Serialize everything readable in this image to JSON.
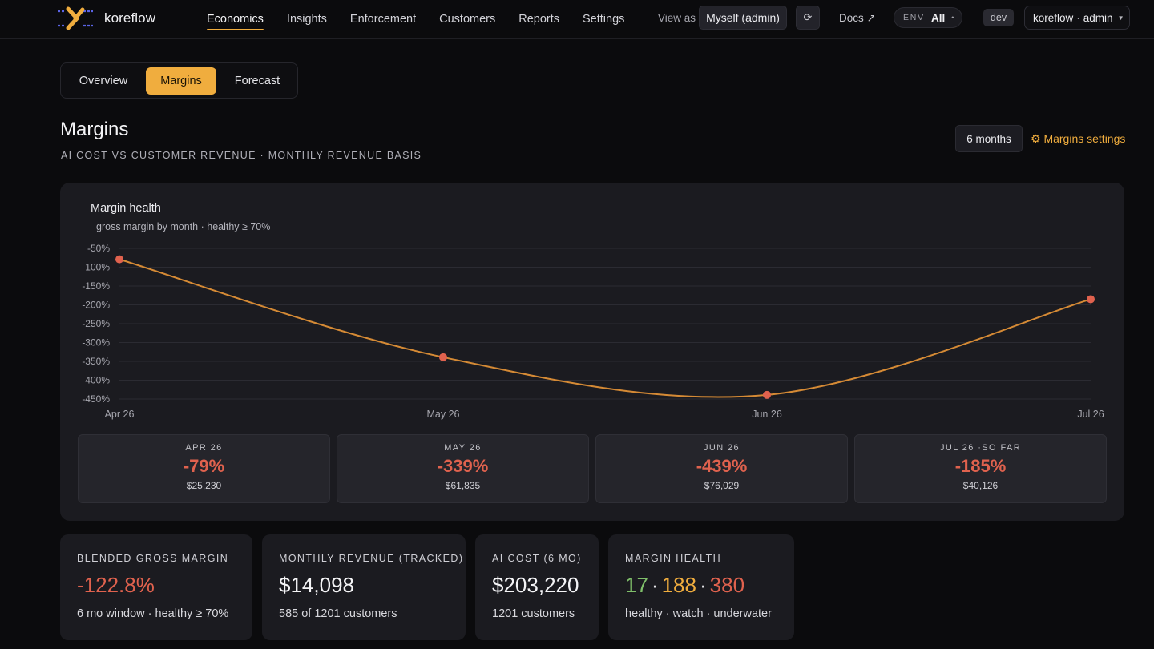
{
  "app": {
    "name": "koreflow"
  },
  "nav": {
    "links": [
      "Economics",
      "Insights",
      "Enforcement",
      "Customers",
      "Reports",
      "Settings"
    ],
    "active": "Economics",
    "view_as_label": "View as",
    "view_as_value": "Myself (admin)",
    "docs_label": "Docs ↗",
    "env_key": "ENV",
    "env_value": "All",
    "dev_badge": "dev",
    "account_org": "koreflow",
    "account_role": "admin"
  },
  "tabs": [
    {
      "label": "Overview",
      "active": false
    },
    {
      "label": "Margins",
      "active": true
    },
    {
      "label": "Forecast",
      "active": false
    }
  ],
  "page": {
    "title": "Margins",
    "subtitle": "AI COST VS CUSTOMER REVENUE · MONTHLY REVENUE BASIS",
    "range": "6 months",
    "settings_link": "⚙ Margins settings"
  },
  "chart_data": {
    "type": "line",
    "title": "Margin health",
    "subtitle": "gross margin by month · healthy ≥ 70%",
    "categories": [
      "Apr 26",
      "May 26",
      "Jun 26",
      "Jul 26"
    ],
    "series": [
      {
        "values": [
          -79,
          -339,
          -439,
          -185
        ]
      }
    ],
    "yticks": [
      -50,
      -100,
      -150,
      -200,
      -250,
      -300,
      -350,
      -400,
      -450
    ],
    "ylim": [
      -450,
      -50
    ],
    "ytick_format": "%",
    "grid": true,
    "line_color": "#d58a35",
    "point_color": "#e0624e"
  },
  "months": [
    {
      "label": "APR 26",
      "margin": "-79%",
      "revenue": "$25,230"
    },
    {
      "label": "MAY 26",
      "margin": "-339%",
      "revenue": "$61,835"
    },
    {
      "label": "JUN 26",
      "margin": "-439%",
      "revenue": "$76,029"
    },
    {
      "label": "JUL 26 ·SO FAR",
      "margin": "-185%",
      "revenue": "$40,126"
    }
  ],
  "stats": {
    "blended": {
      "label": "BLENDED GROSS MARGIN",
      "value": "-122.8%",
      "foot": "6 mo window · healthy ≥ 70%"
    },
    "revenue": {
      "label": "MONTHLY REVENUE (TRACKED)",
      "value": "$14,098",
      "foot": "585 of 1201 customers"
    },
    "ai_cost": {
      "label": "AI COST (6 MO)",
      "value": "$203,220",
      "foot": "1201 customers"
    },
    "health": {
      "label": "MARGIN HEALTH",
      "healthy": "17",
      "watch": "188",
      "underwater": "380",
      "foot": "healthy · watch · underwater"
    }
  },
  "colors": {
    "accent": "#f0ad3e",
    "negative": "#e0624e",
    "healthy": "#7fbf6a"
  }
}
